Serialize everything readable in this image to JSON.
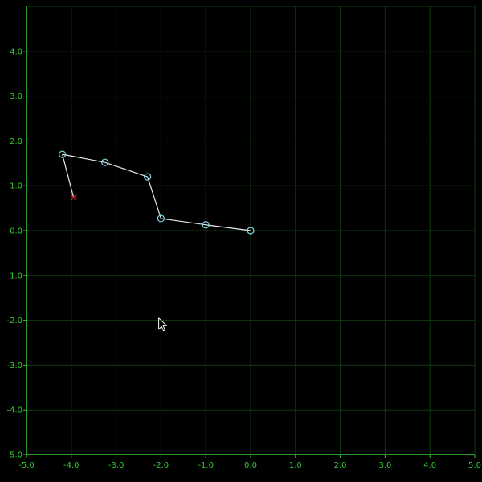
{
  "colors": {
    "background": "#000000",
    "axis": "#33cc33",
    "grid": "#0f3a0f",
    "tick_label": "#33cc33",
    "arm_line": "#e8e8e8",
    "joint": "#7fd6e6",
    "target": "#d62020",
    "cursor_fill": "#000000",
    "cursor_stroke": "#ffffff"
  },
  "icons": {
    "joint": "circle-icon",
    "target": "x-mark-icon",
    "cursor": "mouse-pointer-icon"
  },
  "chart_data": {
    "type": "line",
    "title": "",
    "xlabel": "",
    "ylabel": "",
    "xlim": [
      -5,
      5
    ],
    "ylim": [
      -5,
      5
    ],
    "grid": true,
    "x_ticks": [
      "-5.0",
      "-4.0",
      "-3.0",
      "-2.0",
      "-1.0",
      "0.0",
      "1.0",
      "2.0",
      "3.0",
      "4.0",
      "5.0"
    ],
    "y_ticks": [
      "-5.0",
      "-4.0",
      "-3.0",
      "-2.0",
      "-1.0",
      "0.0",
      "1.0",
      "2.0",
      "3.0",
      "4.0"
    ],
    "series": [
      {
        "points": [
          {
            "x": 0.0,
            "y": 0.0
          },
          {
            "x": -1.0,
            "y": 0.13
          },
          {
            "x": -2.0,
            "y": 0.27
          },
          {
            "x": -2.3,
            "y": 1.2
          },
          {
            "x": -3.25,
            "y": 1.52
          },
          {
            "x": -4.2,
            "y": 1.7
          }
        ],
        "end_segment_to": {
          "x": -3.95,
          "y": 0.74
        }
      }
    ],
    "target": {
      "x": -3.95,
      "y": 0.74
    },
    "cursor": {
      "x": -2.05,
      "y": -1.95
    }
  }
}
